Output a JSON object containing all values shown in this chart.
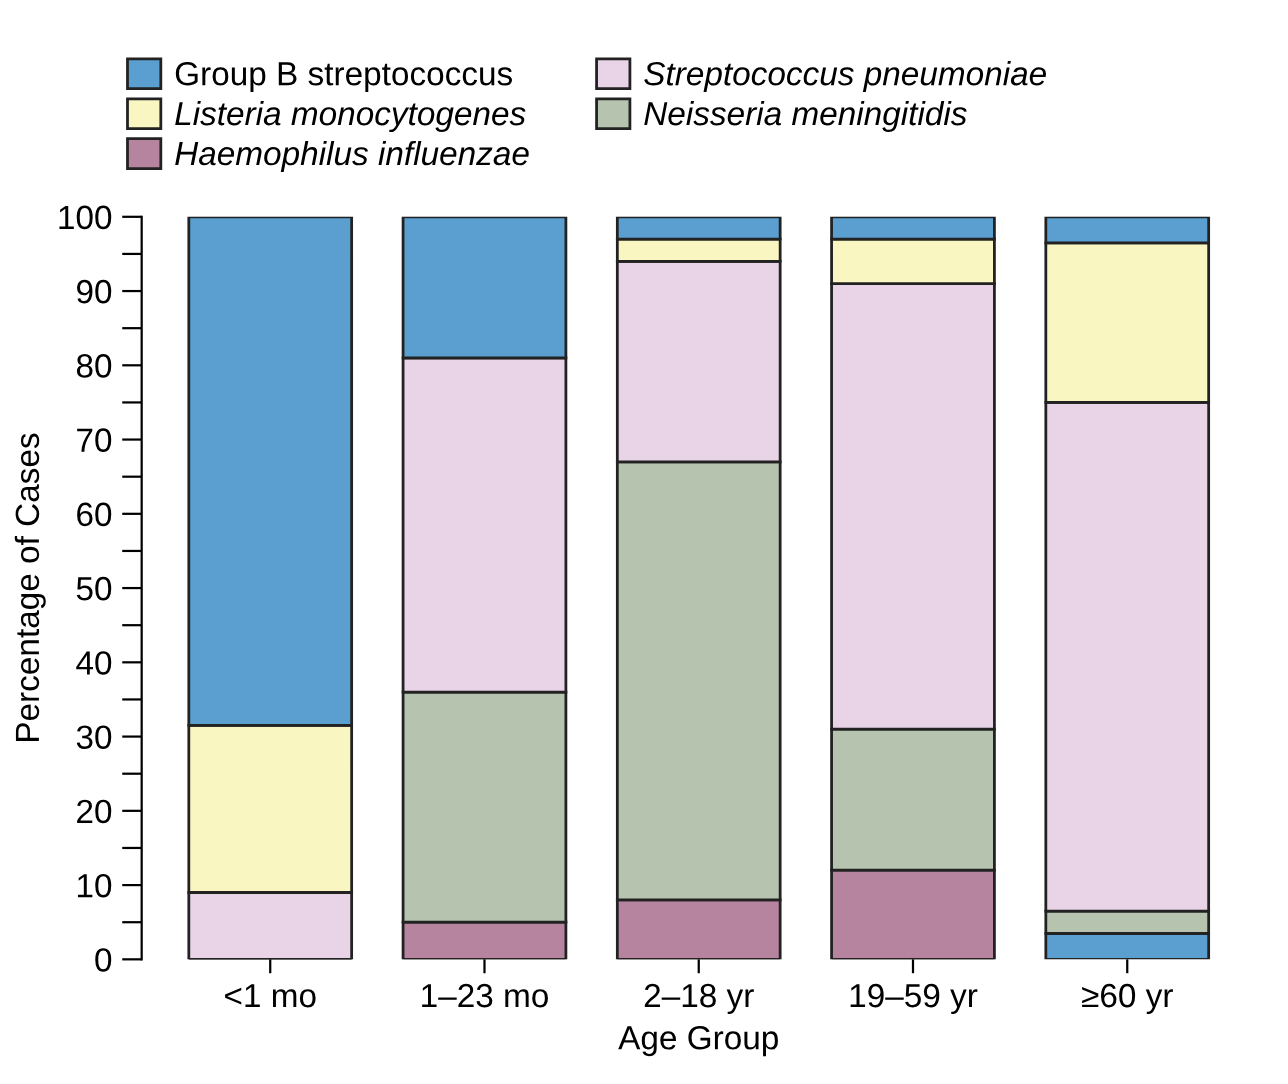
{
  "chart_data": {
    "type": "bar",
    "stacked": true,
    "xlabel": "Age Group",
    "ylabel": "Percentage of Cases",
    "categories": [
      "<1 mo",
      "1–23 mo",
      "2–18 yr",
      "19–59 yr",
      "≥60 yr"
    ],
    "series": [
      {
        "color": "#5a9fcf",
        "values": [
          0,
          0,
          0,
          0,
          3.5
        ]
      },
      {
        "name": "Haemophilus influenzae",
        "color": "#b7849f",
        "values": [
          0,
          5,
          8,
          12,
          0
        ]
      },
      {
        "name": "Neisseria meningitidis",
        "color": "#b6c3ae",
        "values": [
          0,
          31,
          59,
          19,
          3
        ]
      },
      {
        "name": "Streptococcus pneumoniae",
        "color": "#e8d4e6",
        "values": [
          9,
          45,
          27,
          60,
          68.5
        ]
      },
      {
        "name": "Listeria monocytogenes",
        "color": "#f9f6c2",
        "values": [
          22.5,
          0,
          3,
          6,
          21.5
        ]
      },
      {
        "name": "Group B streptococcus",
        "color": "#5a9fcf",
        "values": [
          68.5,
          19,
          3,
          3,
          3.5
        ]
      }
    ],
    "ylim": [
      0,
      100
    ],
    "yticks": [
      0,
      {
        "value": 5,
        "label": null
      },
      10,
      {
        "value": 15,
        "label": null
      },
      20,
      {
        "value": 25,
        "label": null
      },
      30,
      {
        "value": 35,
        "label": null
      },
      40,
      {
        "value": 45,
        "label": null
      },
      50,
      {
        "value": 55,
        "label": null
      },
      60,
      {
        "value": 65,
        "label": null
      },
      70,
      {
        "value": 75,
        "label": null
      },
      80,
      {
        "value": 85,
        "label": null
      },
      90,
      {
        "value": 95,
        "label": null
      },
      100
    ],
    "grid": false,
    "legend": "top"
  }
}
